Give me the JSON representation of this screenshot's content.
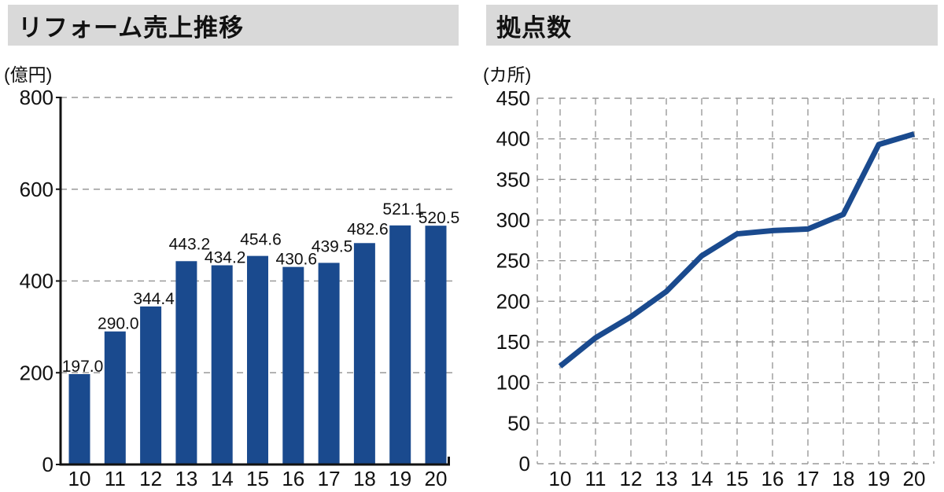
{
  "left_chart": {
    "title": "リフォーム売上推移",
    "unit": "(億円)"
  },
  "right_chart": {
    "title": "拠点数",
    "unit": "(カ所)"
  },
  "colors": {
    "bar": "#1a4a8e",
    "line": "#1a4a8e",
    "header_bg": "#d9d9d9",
    "grid": "#999999",
    "axis": "#111111",
    "text": "#111111"
  },
  "chart_data": [
    {
      "type": "bar",
      "title": "リフォーム売上推移",
      "unit": "億円",
      "categories": [
        "10",
        "11",
        "12",
        "13",
        "14",
        "15",
        "16",
        "17",
        "18",
        "19",
        "20"
      ],
      "values": [
        197.0,
        290.0,
        344.4,
        443.2,
        434.2,
        454.6,
        430.6,
        439.5,
        482.6,
        521.1,
        520.5
      ],
      "data_labels": [
        "197.0",
        "290.0",
        "344.4",
        "443.2",
        "434.2",
        "454.6",
        "430.6",
        "439.5",
        "482.6",
        "521.1",
        "520.5"
      ],
      "ylabel": "億円",
      "xlabel": "",
      "yticks": [
        0,
        200,
        400,
        600,
        800
      ],
      "ylim": [
        0,
        800
      ],
      "grid": "horizontal-dashed",
      "legend": "none"
    },
    {
      "type": "line",
      "title": "拠点数",
      "unit": "カ所",
      "categories": [
        "10",
        "11",
        "12",
        "13",
        "14",
        "15",
        "16",
        "17",
        "18",
        "19",
        "20"
      ],
      "values": [
        120,
        155,
        181,
        212,
        256,
        283,
        287,
        289,
        307,
        393,
        406
      ],
      "ylabel": "カ所",
      "xlabel": "",
      "yticks": [
        0,
        50,
        100,
        150,
        200,
        250,
        300,
        350,
        400,
        450
      ],
      "ylim": [
        0,
        450
      ],
      "grid": "full-dashed",
      "legend": "none"
    }
  ]
}
